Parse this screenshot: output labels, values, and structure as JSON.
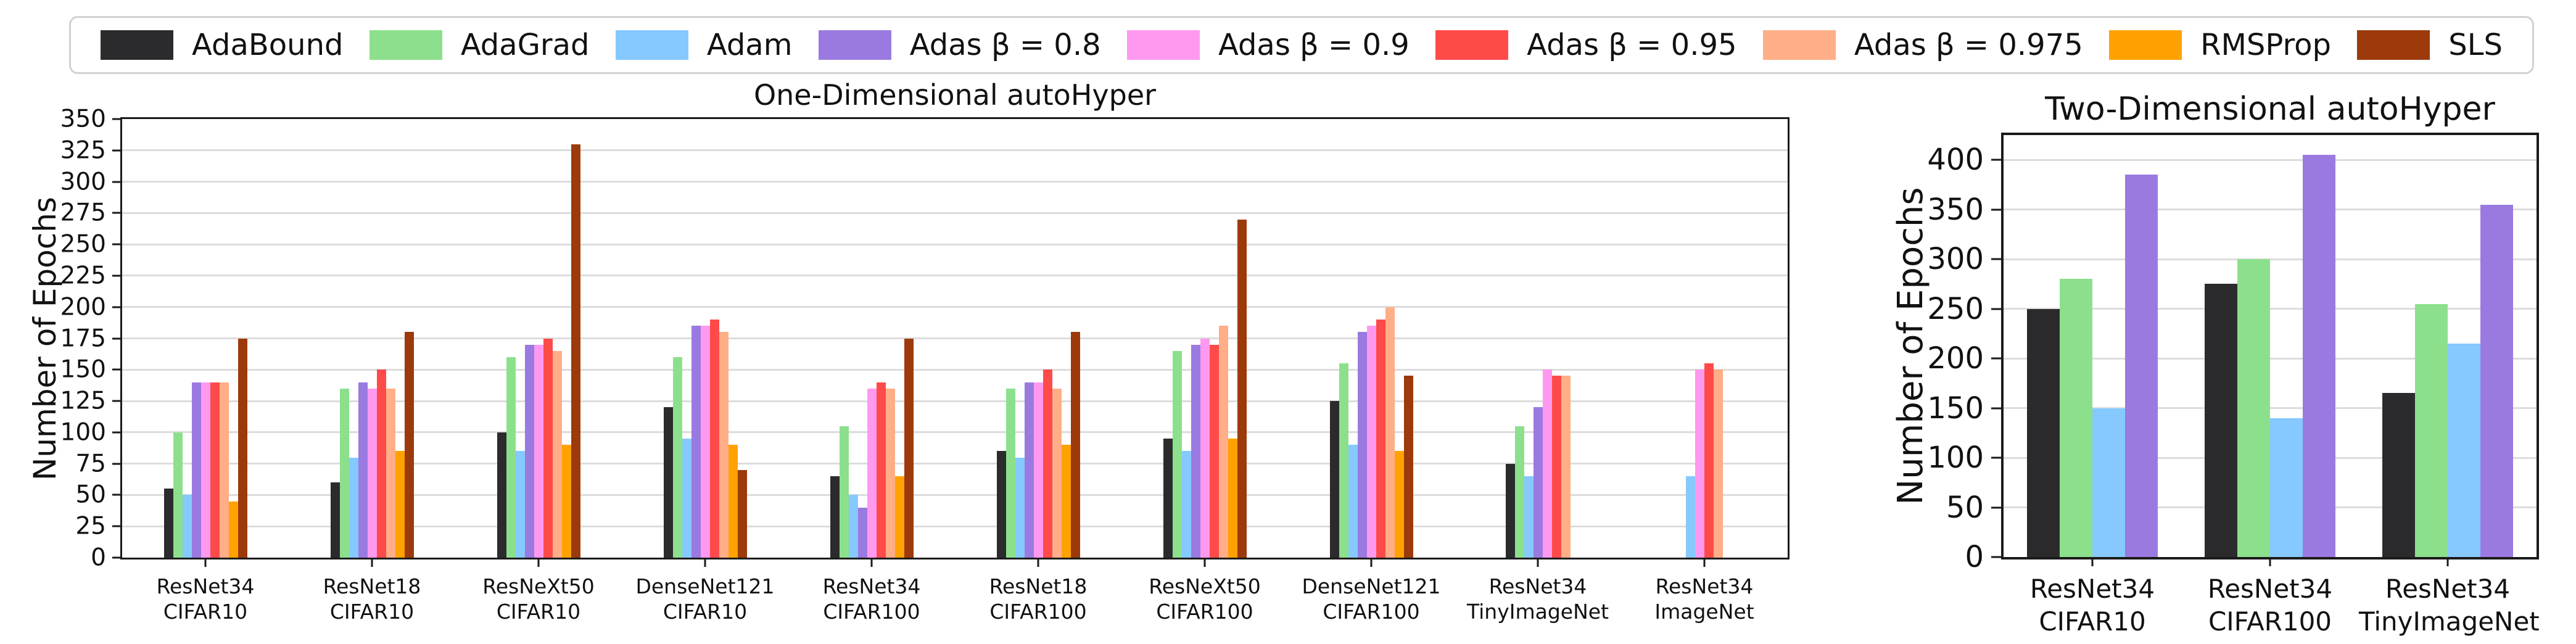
{
  "figure": {
    "background": "#ffffff",
    "colors": {
      "grid": "#dcdcdc",
      "axis": "#1a1a1a",
      "legend_border": "#d2d2d2",
      "text": "#111111"
    }
  },
  "legend": {
    "entries": [
      {
        "label": "AdaBound",
        "color": "#2b2b2e"
      },
      {
        "label": "AdaGrad",
        "color": "#8ce08c"
      },
      {
        "label": "Adam",
        "color": "#85c9ff"
      },
      {
        "label": "Adas β = 0.8",
        "color": "#9a7ae0"
      },
      {
        "label": "Adas β = 0.9",
        "color": "#ff99f0"
      },
      {
        "label": "Adas β = 0.95",
        "color": "#ff4a4a"
      },
      {
        "label": "Adas β = 0.975",
        "color": "#ffae87"
      },
      {
        "label": "RMSProp",
        "color": "#ffa200"
      },
      {
        "label": "SLS",
        "color": "#9c3a0c"
      }
    ]
  },
  "chart_data": [
    {
      "type": "bar",
      "title": "One-Dimensional autoHyper",
      "xlabel": "",
      "ylabel": "Number of Epochs",
      "ylim": [
        0,
        350
      ],
      "yticks": [
        0,
        25,
        50,
        75,
        100,
        125,
        150,
        175,
        200,
        225,
        250,
        275,
        300,
        325,
        350
      ],
      "grid": true,
      "legend_position": "top-shared",
      "categories": [
        "ResNet34\nCIFAR10",
        "ResNet18\nCIFAR10",
        "ResNeXt50\nCIFAR10",
        "DenseNet121\nCIFAR10",
        "ResNet34\nCIFAR100",
        "ResNet18\nCIFAR100",
        "ResNeXt50\nCIFAR100",
        "DenseNet121\nCIFAR100",
        "ResNet34\nTinyImageNet",
        "ResNet34\nImageNet"
      ],
      "series": [
        {
          "name": "AdaBound",
          "color": "#2b2b2e",
          "values": [
            55,
            60,
            100,
            120,
            65,
            85,
            95,
            125,
            75,
            null
          ]
        },
        {
          "name": "AdaGrad",
          "color": "#8ce08c",
          "values": [
            100,
            135,
            160,
            160,
            105,
            135,
            165,
            155,
            105,
            null
          ]
        },
        {
          "name": "Adam",
          "color": "#85c9ff",
          "values": [
            50,
            80,
            85,
            95,
            50,
            80,
            85,
            90,
            65,
            65
          ]
        },
        {
          "name": "Adas β = 0.8",
          "color": "#9a7ae0",
          "values": [
            140,
            140,
            170,
            185,
            40,
            140,
            170,
            180,
            120,
            null
          ]
        },
        {
          "name": "Adas β = 0.9",
          "color": "#ff99f0",
          "values": [
            140,
            135,
            170,
            185,
            135,
            140,
            175,
            185,
            150,
            150
          ]
        },
        {
          "name": "Adas β = 0.95",
          "color": "#ff4a4a",
          "values": [
            140,
            150,
            175,
            190,
            140,
            150,
            170,
            190,
            145,
            155
          ]
        },
        {
          "name": "Adas β = 0.975",
          "color": "#ffae87",
          "values": [
            140,
            135,
            165,
            180,
            135,
            135,
            185,
            200,
            145,
            150
          ]
        },
        {
          "name": "RMSProp",
          "color": "#ffa200",
          "values": [
            45,
            85,
            90,
            90,
            65,
            90,
            95,
            85,
            null,
            null
          ]
        },
        {
          "name": "SLS",
          "color": "#9c3a0c",
          "values": [
            175,
            180,
            330,
            70,
            175,
            180,
            270,
            145,
            null,
            null
          ]
        }
      ]
    },
    {
      "type": "bar",
      "title": "Two-Dimensional autoHyper",
      "xlabel": "",
      "ylabel": "Number of Epochs",
      "ylim": [
        0,
        425
      ],
      "yticks": [
        0,
        50,
        100,
        150,
        200,
        250,
        300,
        350,
        400
      ],
      "grid": true,
      "legend_position": "top-shared",
      "categories": [
        "ResNet34\nCIFAR10",
        "ResNet34\nCIFAR100",
        "ResNet34\nTinyImageNet"
      ],
      "series": [
        {
          "name": "AdaBound",
          "color": "#2b2b2e",
          "values": [
            250,
            275,
            165
          ]
        },
        {
          "name": "AdaGrad",
          "color": "#8ce08c",
          "values": [
            280,
            300,
            255
          ]
        },
        {
          "name": "Adam",
          "color": "#85c9ff",
          "values": [
            150,
            140,
            215
          ]
        },
        {
          "name": "Adas β = 0.8",
          "color": "#9a7ae0",
          "values": [
            385,
            405,
            355
          ]
        }
      ]
    }
  ]
}
